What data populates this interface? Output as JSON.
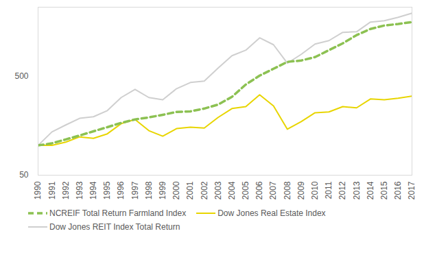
{
  "chart_data": {
    "type": "line",
    "x": [
      1990,
      1991,
      1992,
      1993,
      1994,
      1995,
      1996,
      1997,
      1998,
      1999,
      2000,
      2001,
      2002,
      2003,
      2004,
      2005,
      2006,
      2007,
      2008,
      2009,
      2010,
      2011,
      2012,
      2013,
      2014,
      2015,
      2016,
      2017
    ],
    "xlim": [
      1990,
      2017
    ],
    "xticks": [
      1990,
      1991,
      1992,
      1993,
      1994,
      1995,
      1996,
      1997,
      1998,
      1999,
      2000,
      2001,
      2002,
      2003,
      2004,
      2005,
      2006,
      2007,
      2008,
      2009,
      2010,
      2011,
      2012,
      2013,
      2014,
      2015,
      2016,
      2017
    ],
    "ylim": [
      50,
      2500
    ],
    "yticks": [
      50,
      500
    ],
    "log": "y",
    "grid": false,
    "legend": "bottom",
    "series": [
      {
        "name": "NCREIF Total Return Farmland Index",
        "color": "#8cc152",
        "line_style": "dashed",
        "values": [
          100,
          105,
          115,
          126,
          139,
          153,
          169,
          183,
          192,
          204,
          218,
          221,
          236,
          259,
          310,
          413,
          508,
          596,
          700,
          722,
          782,
          919,
          1077,
          1305,
          1507,
          1632,
          1690,
          1769
        ]
      },
      {
        "name": "Dow Jones Real Estate Index",
        "color": "#e8d500",
        "line_style": "solid",
        "values": [
          100,
          100,
          108,
          122,
          118,
          131,
          166,
          183,
          141,
          124,
          148,
          153,
          150,
          192,
          236,
          247,
          325,
          251,
          146,
          174,
          214,
          218,
          247,
          240,
          295,
          290,
          300,
          315
        ]
      },
      {
        "name": "Dow Jones REIT Index Total Return",
        "color": "#cfcfcf",
        "line_style": "solid",
        "values": [
          100,
          137,
          161,
          188,
          195,
          225,
          305,
          369,
          305,
          290,
          375,
          433,
          447,
          606,
          808,
          919,
          1224,
          1043,
          678,
          834,
          1059,
          1148,
          1391,
          1411,
          1769,
          1826,
          1977,
          2176
        ]
      }
    ]
  }
}
